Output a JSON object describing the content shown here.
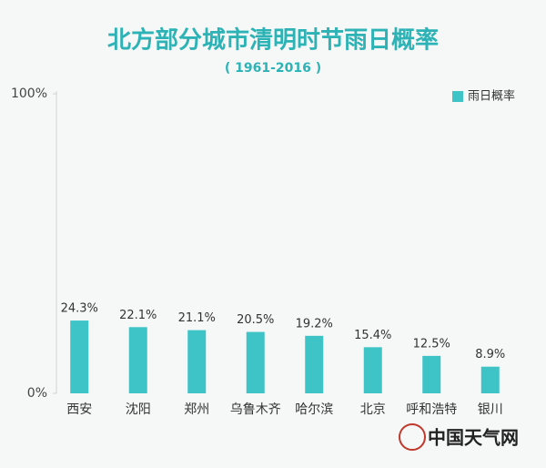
{
  "chart_data": {
    "type": "bar",
    "title": "北方部分城市清明时节雨日概率",
    "subtitle": "( 1961-2016 )",
    "categories": [
      "西安",
      "沈阳",
      "郑州",
      "乌鲁木齐",
      "哈尔滨",
      "北京",
      "呼和浩特",
      "银川"
    ],
    "series": [
      {
        "name": "雨日概率",
        "color": "#3ec4c7",
        "values": [
          24.3,
          22.1,
          21.1,
          20.5,
          19.2,
          15.4,
          12.5,
          8.9
        ],
        "value_labels": [
          "24.3%",
          "22.1%",
          "21.1%",
          "20.5%",
          "19.2%",
          "15.4%",
          "12.5%",
          "8.9%"
        ]
      }
    ],
    "ylim": [
      0,
      100
    ],
    "yticks": [
      {
        "value": 0,
        "label": "0%"
      },
      {
        "value": 100,
        "label": "100%"
      }
    ],
    "legend": "top-right",
    "source": "中国天气网"
  }
}
